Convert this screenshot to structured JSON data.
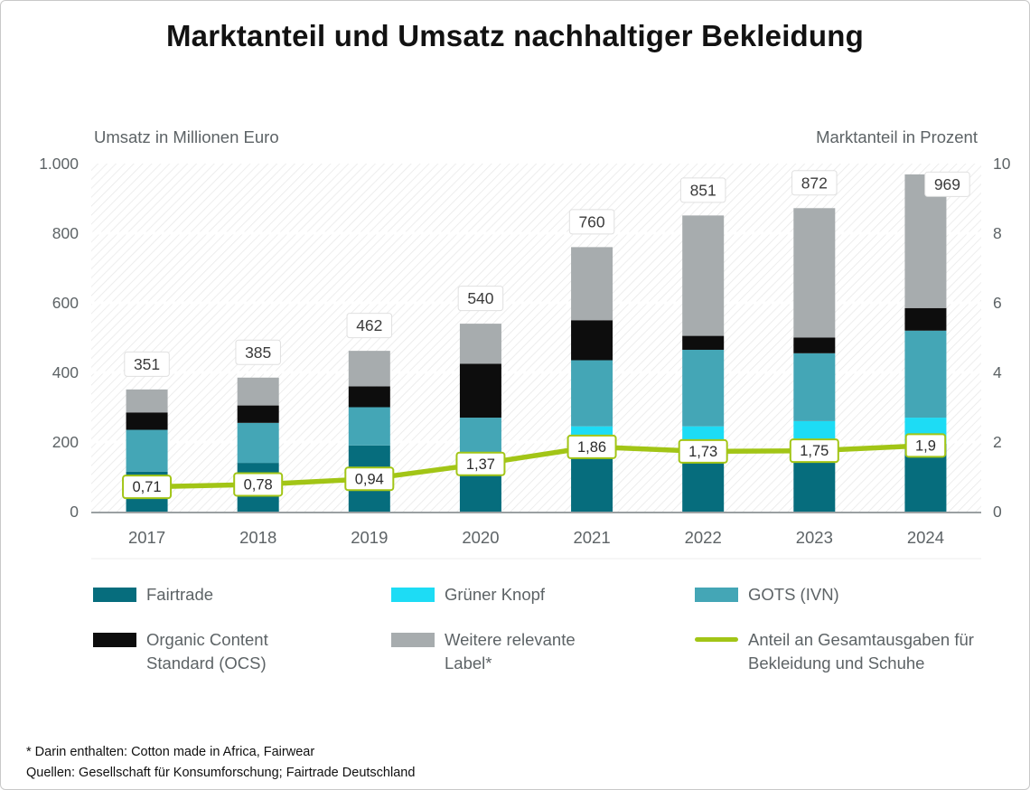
{
  "title": "Marktanteil und Umsatz nachhaltiger Bekleidung",
  "chart_data": {
    "type": "stacked-bar+line",
    "categories": [
      "2017",
      "2018",
      "2019",
      "2020",
      "2021",
      "2022",
      "2023",
      "2024"
    ],
    "series": [
      {
        "name": "Fairtrade",
        "color": "#066d7d",
        "values": [
          115,
          140,
          190,
          115,
          200,
          170,
          170,
          195
        ]
      },
      {
        "name": "Grüner Knopf",
        "color": "#1ddcf5",
        "values": [
          0,
          0,
          0,
          25,
          45,
          75,
          90,
          75
        ]
      },
      {
        "name": "GOTS (IVN)",
        "color": "#44a6b6",
        "values": [
          120,
          115,
          110,
          130,
          190,
          220,
          195,
          250
        ]
      },
      {
        "name": "Organic Content Standard (OCS)",
        "color": "#0d0d0d",
        "values": [
          50,
          50,
          60,
          155,
          115,
          40,
          45,
          65
        ]
      },
      {
        "name": "Weitere relevante Label*",
        "color": "#a7acae",
        "values": [
          66,
          80,
          102,
          115,
          210,
          346,
          372,
          384
        ]
      }
    ],
    "totals": [
      351,
      385,
      462,
      540,
      760,
      851,
      872,
      969
    ],
    "line": {
      "name": "Anteil an Gesamtausgaben für Bekleidung und Schuhe",
      "color": "#a2c516",
      "values": [
        0.71,
        0.78,
        0.94,
        1.37,
        1.86,
        1.73,
        1.75,
        1.9
      ],
      "labels": [
        "0,71",
        "0,78",
        "0,94",
        "1,37",
        "1,86",
        "1,73",
        "1,75",
        "1,9"
      ]
    },
    "left_axis": {
      "title": "Umsatz in Millionen Euro",
      "max": 1000,
      "tick_values": [
        0,
        200,
        400,
        600,
        800,
        1000
      ],
      "ticks": [
        "0",
        "200",
        "400",
        "600",
        "800",
        "1.000"
      ]
    },
    "right_axis": {
      "title": "Marktanteil in Prozent",
      "max": 10,
      "tick_values": [
        0,
        2,
        4,
        6,
        8,
        10
      ],
      "ticks": [
        "0",
        "2",
        "4",
        "6",
        "8",
        "10"
      ]
    },
    "grid": "horizontal",
    "legend_position": "bottom"
  },
  "legend": {
    "items": [
      {
        "label": "Fairtrade",
        "swatch": "rect",
        "color": "#066d7d"
      },
      {
        "label": "Grüner Knopf",
        "swatch": "rect",
        "color": "#1ddcf5"
      },
      {
        "label": "GOTS (IVN)",
        "swatch": "rect",
        "color": "#44a6b6"
      },
      {
        "label": "Organic Content Standard (OCS)",
        "swatch": "rect",
        "color": "#0d0d0d"
      },
      {
        "label": "Weitere relevante Label*",
        "swatch": "rect",
        "color": "#a7acae"
      },
      {
        "label": "Anteil an Gesamtausgaben für Bekleidung und Schuhe",
        "swatch": "line",
        "color": "#a2c516"
      }
    ]
  },
  "footnotes": [
    "* Darin enthalten: Cotton made in Africa, Fairwear",
    "Quellen: Gesellschaft für Konsumforschung; Fairtrade Deutschland"
  ]
}
